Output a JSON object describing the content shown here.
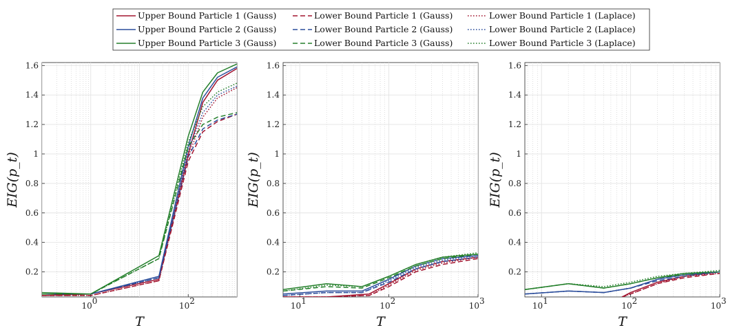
{
  "chart_data": [
    {
      "type": "line",
      "xlabel": "T",
      "ylabel": "EIG(p_t)",
      "xscale": "log",
      "xlim": [
        0.1,
        1000
      ],
      "ylim": [
        0.03,
        1.62
      ],
      "xticks": [
        {
          "v": 1,
          "label": "10",
          "exp": "0"
        },
        {
          "v": 100,
          "label": "10",
          "exp": "2"
        }
      ],
      "yticks": [
        0.2,
        0.4,
        0.6,
        0.8,
        1,
        1.2,
        1.4,
        1.6
      ],
      "grid": true,
      "series": [
        {
          "name": "Upper Bound Particle 1 (Gauss)",
          "color": "#a2142f",
          "dash": "solid",
          "x": [
            0.1,
            1,
            25,
            100,
            200,
            400,
            1000
          ],
          "y": [
            0.04,
            0.05,
            0.15,
            1.0,
            1.35,
            1.5,
            1.58
          ]
        },
        {
          "name": "Upper Bound Particle 2 (Gauss)",
          "color": "#2b4d9b",
          "dash": "solid",
          "x": [
            0.1,
            1,
            25,
            100,
            200,
            400,
            1000
          ],
          "y": [
            0.05,
            0.05,
            0.17,
            1.05,
            1.38,
            1.52,
            1.59
          ]
        },
        {
          "name": "Upper Bound Particle 3 (Gauss)",
          "color": "#237f2a",
          "dash": "solid",
          "x": [
            0.1,
            1,
            25,
            100,
            200,
            400,
            1000
          ],
          "y": [
            0.06,
            0.05,
            0.31,
            1.12,
            1.42,
            1.55,
            1.61
          ]
        },
        {
          "name": "Lower Bound Particle 1 (Gauss)",
          "color": "#a2142f",
          "dash": "dashed",
          "x": [
            0.1,
            1,
            25,
            100,
            200,
            400,
            1000
          ],
          "y": [
            0.04,
            0.04,
            0.14,
            0.95,
            1.15,
            1.22,
            1.27
          ]
        },
        {
          "name": "Lower Bound Particle 2 (Gauss)",
          "color": "#2b4d9b",
          "dash": "dashed",
          "x": [
            0.1,
            1,
            25,
            100,
            200,
            400,
            1000
          ],
          "y": [
            0.05,
            0.05,
            0.16,
            0.98,
            1.17,
            1.23,
            1.27
          ]
        },
        {
          "name": "Lower Bound Particle 3 (Gauss)",
          "color": "#237f2a",
          "dash": "dashed",
          "x": [
            0.1,
            1,
            25,
            100,
            200,
            400,
            1000
          ],
          "y": [
            0.05,
            0.05,
            0.29,
            1.05,
            1.2,
            1.25,
            1.28
          ]
        },
        {
          "name": "Lower Bound Particle 1 (Laplace)",
          "color": "#a2142f",
          "dash": "dotted",
          "x": [
            0.1,
            1,
            25,
            100,
            200,
            400,
            1000
          ],
          "y": [
            0.04,
            0.04,
            0.14,
            0.98,
            1.25,
            1.38,
            1.45
          ]
        },
        {
          "name": "Lower Bound Particle 2 (Laplace)",
          "color": "#2b4d9b",
          "dash": "dotted",
          "x": [
            0.1,
            1,
            25,
            100,
            200,
            400,
            1000
          ],
          "y": [
            0.05,
            0.05,
            0.16,
            1.02,
            1.28,
            1.4,
            1.46
          ]
        },
        {
          "name": "Lower Bound Particle 3 (Laplace)",
          "color": "#237f2a",
          "dash": "dotted",
          "x": [
            0.1,
            1,
            25,
            100,
            200,
            400,
            1000
          ],
          "y": [
            0.05,
            0.05,
            0.29,
            1.08,
            1.32,
            1.42,
            1.48
          ]
        }
      ]
    },
    {
      "type": "line",
      "xlabel": "T",
      "ylabel": "EIG(p_t)",
      "xscale": "log",
      "xlim": [
        6.5,
        1000
      ],
      "ylim": [
        0.03,
        1.62
      ],
      "xticks": [
        {
          "v": 10,
          "label": "10",
          "exp": "1"
        },
        {
          "v": 100,
          "label": "10",
          "exp": "2"
        },
        {
          "v": 1000,
          "label": "10",
          "exp": "3"
        }
      ],
      "yticks": [
        0.2,
        0.4,
        0.6,
        0.8,
        1,
        1.2,
        1.4,
        1.6
      ],
      "grid": true,
      "series": [
        {
          "name": "Upper Bound Particle 1 (Gauss)",
          "color": "#a2142f",
          "dash": "solid",
          "x": [
            6.5,
            20,
            60,
            100,
            200,
            400,
            1000
          ],
          "y": [
            0.03,
            0.03,
            0.05,
            0.12,
            0.22,
            0.27,
            0.3
          ]
        },
        {
          "name": "Upper Bound Particle 2 (Gauss)",
          "color": "#2b4d9b",
          "dash": "solid",
          "x": [
            6.5,
            20,
            50,
            100,
            200,
            400,
            1000
          ],
          "y": [
            0.05,
            0.07,
            0.07,
            0.15,
            0.24,
            0.29,
            0.31
          ]
        },
        {
          "name": "Upper Bound Particle 3 (Gauss)",
          "color": "#237f2a",
          "dash": "solid",
          "x": [
            6.5,
            20,
            50,
            100,
            200,
            400,
            1000
          ],
          "y": [
            0.08,
            0.12,
            0.1,
            0.17,
            0.25,
            0.3,
            0.32
          ]
        },
        {
          "name": "Lower Bound Particle 1 (Gauss)",
          "color": "#a2142f",
          "dash": "dashed",
          "x": [
            6.5,
            20,
            60,
            100,
            200,
            400,
            1000
          ],
          "y": [
            0.03,
            0.03,
            0.04,
            0.1,
            0.2,
            0.25,
            0.29
          ]
        },
        {
          "name": "Lower Bound Particle 2 (Gauss)",
          "color": "#2b4d9b",
          "dash": "dashed",
          "x": [
            6.5,
            20,
            50,
            100,
            200,
            400,
            1000
          ],
          "y": [
            0.04,
            0.06,
            0.06,
            0.13,
            0.22,
            0.27,
            0.3
          ]
        },
        {
          "name": "Lower Bound Particle 3 (Gauss)",
          "color": "#237f2a",
          "dash": "dashed",
          "x": [
            6.5,
            20,
            50,
            100,
            200,
            400,
            1000
          ],
          "y": [
            0.07,
            0.1,
            0.09,
            0.16,
            0.24,
            0.29,
            0.32
          ]
        },
        {
          "name": "Lower Bound Particle 1 (Laplace)",
          "color": "#a2142f",
          "dash": "dotted",
          "x": [
            6.5,
            20,
            60,
            100,
            200,
            400,
            1000
          ],
          "y": [
            0.03,
            0.03,
            0.04,
            0.11,
            0.21,
            0.26,
            0.3
          ]
        },
        {
          "name": "Lower Bound Particle 2 (Laplace)",
          "color": "#2b4d9b",
          "dash": "dotted",
          "x": [
            6.5,
            20,
            50,
            100,
            200,
            400,
            1000
          ],
          "y": [
            0.04,
            0.06,
            0.06,
            0.14,
            0.23,
            0.28,
            0.31
          ]
        },
        {
          "name": "Lower Bound Particle 3 (Laplace)",
          "color": "#237f2a",
          "dash": "dotted",
          "x": [
            6.5,
            20,
            50,
            100,
            200,
            400,
            1000
          ],
          "y": [
            0.07,
            0.11,
            0.1,
            0.17,
            0.25,
            0.3,
            0.33
          ]
        }
      ]
    },
    {
      "type": "line",
      "xlabel": "T",
      "ylabel": "EIG(p_t)",
      "xscale": "log",
      "xlim": [
        6.5,
        1000
      ],
      "ylim": [
        0.03,
        1.62
      ],
      "xticks": [
        {
          "v": 10,
          "label": "10",
          "exp": "1"
        },
        {
          "v": 100,
          "label": "10",
          "exp": "2"
        },
        {
          "v": 1000,
          "label": "10",
          "exp": "3"
        }
      ],
      "yticks": [
        0.2,
        0.4,
        0.6,
        0.8,
        1,
        1.2,
        1.4,
        1.6
      ],
      "grid": true,
      "series": [
        {
          "name": "Upper Bound Particle 1 (Gauss)",
          "color": "#a2142f",
          "dash": "solid",
          "x": [
            80,
            100,
            200,
            400,
            1000
          ],
          "y": [
            0.03,
            0.06,
            0.13,
            0.17,
            0.2
          ]
        },
        {
          "name": "Upper Bound Particle 2 (Gauss)",
          "color": "#2b4d9b",
          "dash": "solid",
          "x": [
            6.5,
            20,
            50,
            100,
            200,
            400,
            1000
          ],
          "y": [
            0.05,
            0.07,
            0.06,
            0.09,
            0.15,
            0.18,
            0.2
          ]
        },
        {
          "name": "Upper Bound Particle 3 (Gauss)",
          "color": "#237f2a",
          "dash": "solid",
          "x": [
            6.5,
            20,
            50,
            100,
            200,
            400,
            1000
          ],
          "y": [
            0.08,
            0.12,
            0.09,
            0.12,
            0.16,
            0.19,
            0.2
          ]
        },
        {
          "name": "Lower Bound Particle 1 (Gauss)",
          "color": "#a2142f",
          "dash": "dashed",
          "x": [
            80,
            100,
            200,
            400,
            1000
          ],
          "y": [
            0.03,
            0.05,
            0.12,
            0.16,
            0.19
          ]
        },
        {
          "name": "Lower Bound Particle 2 (Gauss)",
          "color": "#2b4d9b",
          "dash": "dashed",
          "x": [
            6.5,
            20,
            50,
            100,
            200,
            400,
            1000
          ],
          "y": [
            0.05,
            0.07,
            0.06,
            0.09,
            0.14,
            0.17,
            0.2
          ]
        },
        {
          "name": "Lower Bound Particle 3 (Gauss)",
          "color": "#237f2a",
          "dash": "dashed",
          "x": [
            6.5,
            20,
            50,
            100,
            200,
            400,
            1000
          ],
          "y": [
            0.08,
            0.12,
            0.09,
            0.12,
            0.16,
            0.18,
            0.2
          ]
        },
        {
          "name": "Lower Bound Particle 1 (Laplace)",
          "color": "#a2142f",
          "dash": "dotted",
          "x": [
            80,
            100,
            200,
            400,
            1000
          ],
          "y": [
            0.03,
            0.05,
            0.12,
            0.17,
            0.19
          ]
        },
        {
          "name": "Lower Bound Particle 2 (Laplace)",
          "color": "#2b4d9b",
          "dash": "dotted",
          "x": [
            6.5,
            20,
            50,
            100,
            200,
            400,
            1000
          ],
          "y": [
            0.05,
            0.07,
            0.06,
            0.09,
            0.15,
            0.18,
            0.2
          ]
        },
        {
          "name": "Lower Bound Particle 3 (Laplace)",
          "color": "#237f2a",
          "dash": "dotted",
          "x": [
            6.5,
            20,
            50,
            100,
            200,
            400,
            1000
          ],
          "y": [
            0.08,
            0.12,
            0.1,
            0.13,
            0.17,
            0.19,
            0.21
          ]
        }
      ]
    }
  ],
  "legend": {
    "placement": "top-center",
    "columns": [
      [
        "Upper Bound Particle 1 (Gauss)",
        "Upper Bound Particle 2 (Gauss)",
        "Upper Bound Particle 3 (Gauss)"
      ],
      [
        "Lower Bound Particle 1 (Gauss)",
        "Lower Bound Particle 2 (Gauss)",
        "Lower Bound Particle 3 (Gauss)"
      ],
      [
        "Lower Bound Particle 1 (Laplace)",
        "Lower Bound Particle 2 (Laplace)",
        "Lower Bound Particle 3 (Laplace)"
      ]
    ],
    "colors": [
      "#a2142f",
      "#2b4d9b",
      "#237f2a"
    ],
    "dashes": [
      "solid",
      "dashed",
      "dotted"
    ]
  }
}
